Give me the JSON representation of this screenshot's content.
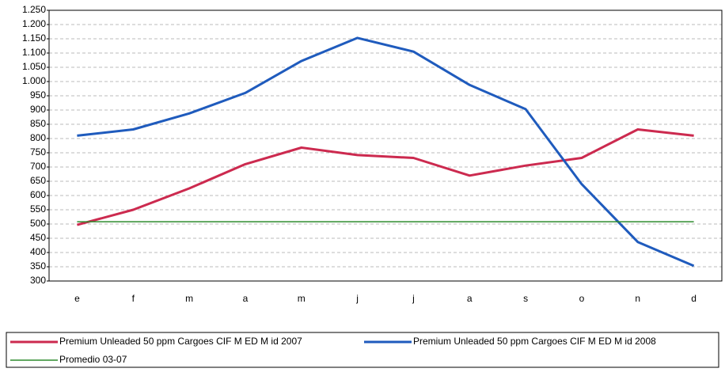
{
  "chart_data": {
    "type": "line",
    "categories": [
      "e",
      "f",
      "m",
      "a",
      "m",
      "j",
      "j",
      "a",
      "s",
      "o",
      "n",
      "d"
    ],
    "series": [
      {
        "name": "Premium Unleaded 50 ppm Cargoes CIF M ED M id 2007",
        "color": "#cc2a4f",
        "values": [
          497,
          550,
          625,
          710,
          768,
          742,
          732,
          670,
          705,
          732,
          832,
          810
        ]
      },
      {
        "name": "Premium Unleaded 50 ppm Cargoes CIF M ED M id 2008",
        "color": "#1f5bbd",
        "values": [
          810,
          832,
          888,
          960,
          1072,
          1153,
          1105,
          988,
          903,
          640,
          437,
          353
        ]
      },
      {
        "name": "Promedio 03-07",
        "color": "#2e8b2e",
        "values": [
          508,
          508,
          508,
          508,
          508,
          508,
          508,
          508,
          508,
          508,
          508,
          508
        ]
      }
    ],
    "ylim": [
      300,
      1250
    ],
    "yticks": [
      300,
      350,
      400,
      450,
      500,
      550,
      600,
      650,
      700,
      750,
      800,
      850,
      900,
      950,
      {
        "value": 1000,
        "label": "1.000"
      },
      {
        "value": 1050,
        "label": "1.050"
      },
      {
        "value": 1100,
        "label": "1.100"
      },
      {
        "value": 1150,
        "label": "1.150"
      },
      {
        "value": 1200,
        "label": "1.200"
      },
      {
        "value": 1250,
        "label": "1.250"
      }
    ],
    "grid": true
  }
}
